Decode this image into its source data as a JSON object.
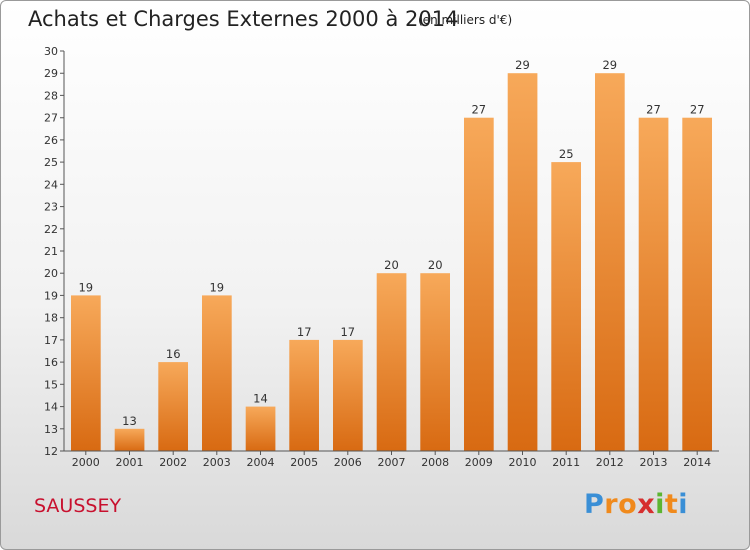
{
  "chart_data": {
    "type": "bar",
    "title": "Achats et Charges Externes 2000 à 2014",
    "subtitle": "(en milliers d'€)",
    "categories": [
      "2000",
      "2001",
      "2002",
      "2003",
      "2004",
      "2005",
      "2006",
      "2007",
      "2008",
      "2009",
      "2010",
      "2011",
      "2012",
      "2013",
      "2014"
    ],
    "values": [
      19,
      13,
      16,
      19,
      14,
      17,
      17,
      20,
      20,
      27,
      29,
      25,
      29,
      27,
      27
    ],
    "ylim": [
      12,
      30
    ],
    "yticks": [
      12,
      13,
      14,
      15,
      16,
      17,
      18,
      19,
      20,
      21,
      22,
      23,
      24,
      25,
      26,
      27,
      28,
      29,
      30
    ],
    "grid": false,
    "bar_color": "#f0903a"
  },
  "place": "SAUSSEY",
  "logo": {
    "letters": [
      "P",
      "r",
      "o",
      "x",
      "i",
      "t",
      "i"
    ],
    "colors": [
      "#3a8fd6",
      "#f08a1c",
      "#f08a1c",
      "#d62f2f",
      "#5cb531",
      "#f08a1c",
      "#3a8fd6"
    ]
  }
}
